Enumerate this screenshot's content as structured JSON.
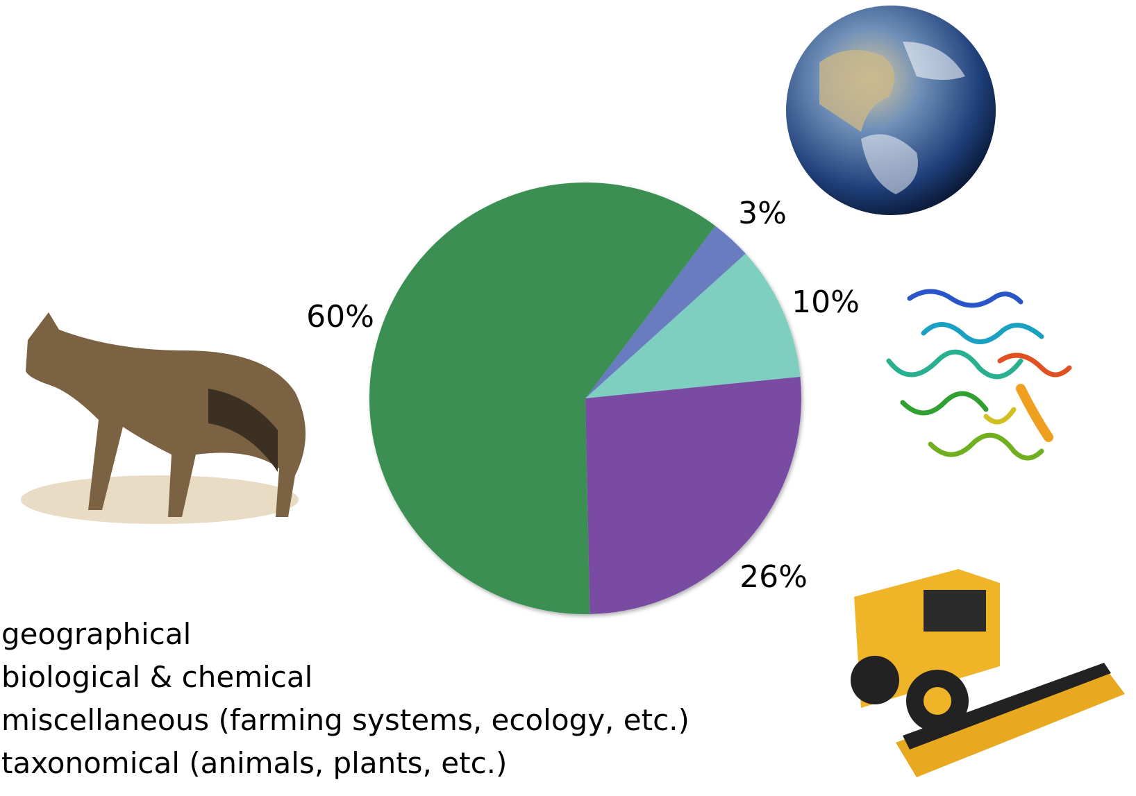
{
  "chart_data": {
    "type": "pie",
    "categories": [
      "geographical",
      "biological & chemical",
      "miscellaneous (farming systems, ecology, etc.)",
      "taxonomical (animals, plants, etc.)"
    ],
    "values": [
      3,
      10,
      26,
      60
    ],
    "value_labels": [
      "3%",
      "10%",
      "26%",
      "60%"
    ],
    "colors": [
      "#6b7bc0",
      "#7ecfbf",
      "#7a4ca3",
      "#3a8f52"
    ]
  }
}
